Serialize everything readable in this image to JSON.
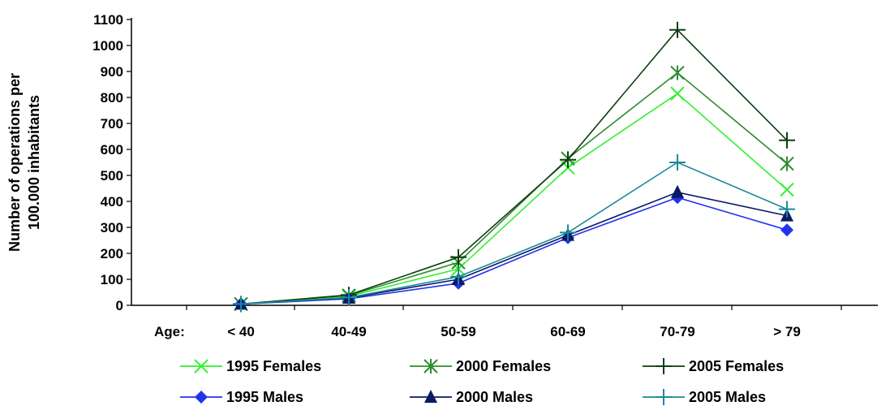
{
  "chart_data": {
    "type": "line",
    "ylabel_lines": [
      "Number of operations per",
      "100.000 inhabitants"
    ],
    "x_axis_prefix": "Age:",
    "categories": [
      "< 40",
      "40-49",
      "50-59",
      "60-69",
      "70-79",
      "> 79"
    ],
    "ylim": [
      0,
      1100
    ],
    "yticks": [
      0,
      100,
      200,
      300,
      400,
      500,
      600,
      700,
      800,
      900,
      1000,
      1100
    ],
    "grid": false,
    "legend_position": "bottom",
    "series": [
      {
        "name": "1995 Females",
        "color": "#33ee33",
        "marker": "x",
        "values": [
          5,
          35,
          140,
          530,
          815,
          445
        ]
      },
      {
        "name": "2000 Females",
        "color": "#2e8b2e",
        "marker": "asterisk",
        "values": [
          5,
          38,
          165,
          565,
          895,
          545
        ]
      },
      {
        "name": "2005 Females",
        "color": "#0d3d0d",
        "marker": "plus",
        "values": [
          5,
          40,
          185,
          560,
          1060,
          635
        ]
      },
      {
        "name": "1995 Males",
        "color": "#2233ee",
        "marker": "diamond",
        "values": [
          5,
          25,
          85,
          260,
          415,
          290
        ]
      },
      {
        "name": "2000 Males",
        "color": "#0a1a66",
        "marker": "triangle",
        "values": [
          5,
          28,
          100,
          270,
          435,
          345
        ]
      },
      {
        "name": "2005 Males",
        "color": "#1a8a99",
        "marker": "plus",
        "values": [
          5,
          30,
          110,
          280,
          550,
          370
        ]
      }
    ]
  }
}
